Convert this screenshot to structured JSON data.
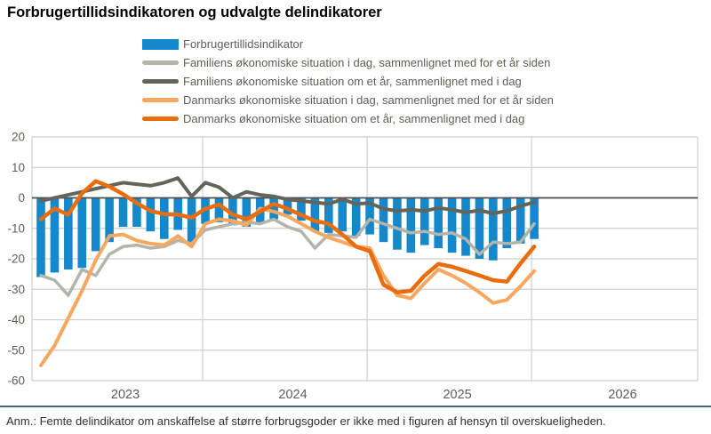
{
  "header": {
    "title": "Forbrugertillidsindikatoren og udvalgte delindikatorer"
  },
  "footer": {
    "note": "Anm.: Femte delindikator om anskaffelse af større forbrugsgoder er ikke med i figuren af hensyn til overskueligheden."
  },
  "colors": {
    "bar_blue": "#1588cb",
    "light_gray_line": "#b4b4aa",
    "dark_gray_line": "#64645b",
    "light_orange_line": "#f7a75e",
    "dark_orange_line": "#e96d0c",
    "grid": "#cfcfce",
    "zero_line": "#4f4f4f",
    "axis_text": "#5f5f55",
    "divider_rule": "#436878"
  },
  "chart_data": {
    "type": "combo",
    "title": "Forbrugertillidsindikatoren og udvalgte delindikatorer",
    "xlabel": "",
    "ylabel": "",
    "ylim": [
      -60,
      20
    ],
    "ytick_step": 10,
    "grid": true,
    "legend_position": "top",
    "x_year_labels": [
      "2023",
      "2024",
      "2025",
      "2026"
    ],
    "months": [
      "2023-01",
      "2023-02",
      "2023-03",
      "2023-04",
      "2023-05",
      "2023-06",
      "2023-07",
      "2023-08",
      "2023-09",
      "2023-10",
      "2023-11",
      "2023-12",
      "2024-01",
      "2024-02",
      "2024-03",
      "2024-04",
      "2024-05",
      "2024-06",
      "2024-07",
      "2024-08",
      "2024-09",
      "2024-10",
      "2024-11",
      "2024-12",
      "2025-01",
      "2025-02",
      "2025-03",
      "2025-04",
      "2025-05",
      "2025-06",
      "2025-07",
      "2025-08",
      "2025-09",
      "2025-10",
      "2025-11",
      "2025-12",
      "2026-01"
    ],
    "series": [
      {
        "name": "Forbrugertillidsindikator",
        "type": "bar",
        "color": "#1588cb",
        "values": [
          -26,
          -24.5,
          -23.5,
          -23,
          -17.5,
          -14.5,
          -9.5,
          -9.5,
          -11,
          -13.5,
          -10.5,
          -14.5,
          -8.5,
          -8,
          -9,
          -9.5,
          -8.5,
          -7,
          -5.5,
          -7.5,
          -11,
          -11.5,
          -11,
          -12.5,
          -12,
          -14.5,
          -17,
          -18,
          -15.5,
          -16.5,
          -18,
          -19,
          -20,
          -20.5,
          -16.5,
          -15,
          -13.5
        ]
      },
      {
        "name": "Familiens økonomiske situation i dag, sammenlignet med for et år siden",
        "type": "line",
        "color": "#b4b4aa",
        "values": [
          -25.5,
          -27,
          -32,
          -23.5,
          -25.5,
          -18.5,
          -16,
          -15.5,
          -16.5,
          -16,
          -14,
          -15,
          -10.5,
          -9.5,
          -8.5,
          -8,
          -8.5,
          -7,
          -9.5,
          -11,
          -16.5,
          -12,
          -12.5,
          -13,
          -7,
          -8.5,
          -10,
          -11.5,
          -11,
          -12,
          -11.5,
          -13.5,
          -18.5,
          -14.5,
          -15,
          -14.5,
          -8.5
        ]
      },
      {
        "name": "Familiens økonomiske situation om et år, sammenlignet med i dag",
        "type": "line",
        "color": "#64645b",
        "values": [
          -1,
          0,
          1,
          2,
          3,
          4,
          5,
          4.5,
          4,
          5,
          6.5,
          0.5,
          5,
          3.5,
          0,
          2,
          1,
          0.5,
          -0.5,
          -1,
          -1.5,
          -2,
          -0.5,
          -2,
          -1.7,
          -3.6,
          -4.3,
          -3.9,
          -4.3,
          -3.3,
          -3.9,
          -4.8,
          -4.1,
          -5.1,
          -4.3,
          -2.7,
          -1.4
        ]
      },
      {
        "name": "Danmarks økonomiske situation i dag, sammenlignet med for et år siden",
        "type": "line",
        "color": "#f7a75e",
        "values": [
          -55,
          -48.5,
          -39.5,
          -30.5,
          -20.5,
          -12.5,
          -12,
          -14,
          -15,
          -15.5,
          -12.5,
          -16,
          -8.5,
          -7,
          -7.5,
          -9,
          -3.5,
          -4.5,
          -6,
          -8.5,
          -11,
          -13,
          -14.5,
          -16,
          -16.5,
          -25.5,
          -32,
          -33,
          -28,
          -23.5,
          -25.5,
          -28,
          -31,
          -34.5,
          -33.5,
          -29,
          -24
        ]
      },
      {
        "name": "Danmarks økonomiske situation om et år, sammenlignet med i dag",
        "type": "line",
        "color": "#e96d0c",
        "values": [
          -7,
          -3.5,
          -5.5,
          1.5,
          5.5,
          3.7,
          1.2,
          -1.7,
          -4.3,
          -5.3,
          -5.5,
          -6.5,
          -3.6,
          -2.2,
          -5.5,
          -7,
          -4.5,
          -2,
          -3.6,
          -5.6,
          -7.6,
          -8.5,
          -12,
          -16,
          -17.5,
          -28.5,
          -31,
          -30.5,
          -25.5,
          -21.7,
          -22.6,
          -24,
          -25.5,
          -27,
          -27.5,
          -21.5,
          -16
        ]
      }
    ]
  }
}
